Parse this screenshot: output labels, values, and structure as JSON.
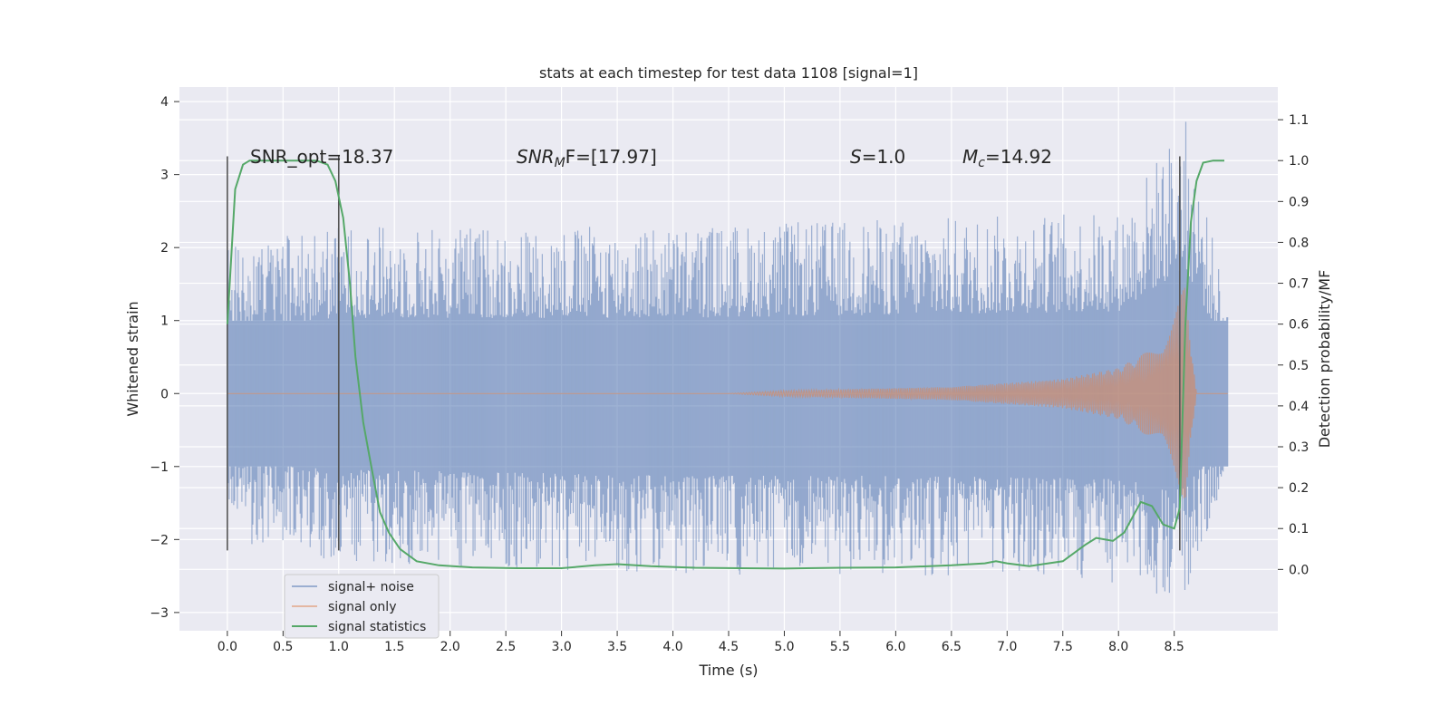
{
  "chart_data": {
    "type": "line",
    "title": "stats at each timestep for test data 1108 [signal=1]",
    "xlabel": "Time (s)",
    "ylabel": "Whitened strain",
    "y2label": "Detection probability/MF",
    "xlim": [
      -0.43,
      9.43
    ],
    "ylim": [
      -3.25,
      4.2
    ],
    "y2lim": [
      -0.15,
      1.18
    ],
    "x_ticks": [
      "0.0",
      "0.5",
      "1.0",
      "1.5",
      "2.0",
      "2.5",
      "3.0",
      "3.5",
      "4.0",
      "4.5",
      "5.0",
      "5.5",
      "6.0",
      "6.5",
      "7.0",
      "7.5",
      "8.0",
      "8.5"
    ],
    "y_ticks": [
      "−3",
      "−2",
      "−1",
      "0",
      "1",
      "2",
      "3",
      "4"
    ],
    "y2_ticks": [
      "0.0",
      "0.1",
      "0.2",
      "0.3",
      "0.4",
      "0.5",
      "0.6",
      "0.7",
      "0.8",
      "0.9",
      "1.0",
      "1.1"
    ],
    "grid": true,
    "legend_position": "lower-left",
    "annotations": {
      "snr_opt": "SNR_opt=18.37",
      "snr_mf_main": "SNR",
      "snr_mf_sub": "M",
      "snr_mf_rest": "F=[17.97]",
      "s_main": "S",
      "s_rest": "=1.0",
      "mc_main": "M",
      "mc_sub": "c",
      "mc_rest": "=14.92"
    },
    "vlines_x": [
      0.0,
      1.0,
      8.55
    ],
    "series": [
      {
        "name": "signal+ noise",
        "color": "#4c72b0",
        "kind": "noise",
        "x_range": [
          0.0,
          8.98
        ],
        "envelope": [
          [
            0.0,
            2.0,
            -2.0
          ],
          [
            1.0,
            2.3,
            -2.3
          ],
          [
            4.0,
            2.3,
            -2.5
          ],
          [
            6.0,
            2.4,
            -2.5
          ],
          [
            8.0,
            2.5,
            -2.6
          ],
          [
            8.6,
            3.8,
            -2.9
          ],
          [
            8.98,
            1.2,
            -1.0
          ]
        ]
      },
      {
        "name": "signal only",
        "color": "#dd8452",
        "kind": "chirp",
        "x_range": [
          0.0,
          8.98
        ],
        "amplitude": [
          [
            0.0,
            0.0
          ],
          [
            4.5,
            0.0
          ],
          [
            5.0,
            0.04
          ],
          [
            6.5,
            0.09
          ],
          [
            7.5,
            0.2
          ],
          [
            8.0,
            0.35
          ],
          [
            8.4,
            0.7
          ],
          [
            8.6,
            1.5
          ],
          [
            8.7,
            0.0
          ],
          [
            8.98,
            0.0
          ]
        ]
      },
      {
        "name": "signal statistics",
        "color": "#55a868",
        "kind": "line",
        "axis": "right",
        "x": [
          0.0,
          0.07,
          0.14,
          0.2,
          0.4,
          0.6,
          0.8,
          0.9,
          0.97,
          1.04,
          1.1,
          1.15,
          1.22,
          1.3,
          1.37,
          1.45,
          1.55,
          1.7,
          1.9,
          2.2,
          2.6,
          3.0,
          3.3,
          3.5,
          3.8,
          4.2,
          4.6,
          5.0,
          5.5,
          6.0,
          6.5,
          6.8,
          6.9,
          7.0,
          7.2,
          7.5,
          7.7,
          7.8,
          7.95,
          8.05,
          8.2,
          8.3,
          8.4,
          8.5,
          8.55,
          8.6,
          8.65,
          8.7,
          8.76,
          8.85,
          8.95
        ],
        "y": [
          0.6,
          0.93,
          0.99,
          1.0,
          1.0,
          1.0,
          1.0,
          0.99,
          0.95,
          0.86,
          0.7,
          0.52,
          0.36,
          0.24,
          0.14,
          0.09,
          0.05,
          0.02,
          0.01,
          0.005,
          0.003,
          0.003,
          0.01,
          0.013,
          0.008,
          0.004,
          0.003,
          0.002,
          0.004,
          0.005,
          0.01,
          0.015,
          0.02,
          0.015,
          0.008,
          0.02,
          0.06,
          0.077,
          0.07,
          0.09,
          0.165,
          0.155,
          0.11,
          0.1,
          0.15,
          0.6,
          0.85,
          0.95,
          0.995,
          1.0,
          1.0
        ]
      }
    ]
  }
}
